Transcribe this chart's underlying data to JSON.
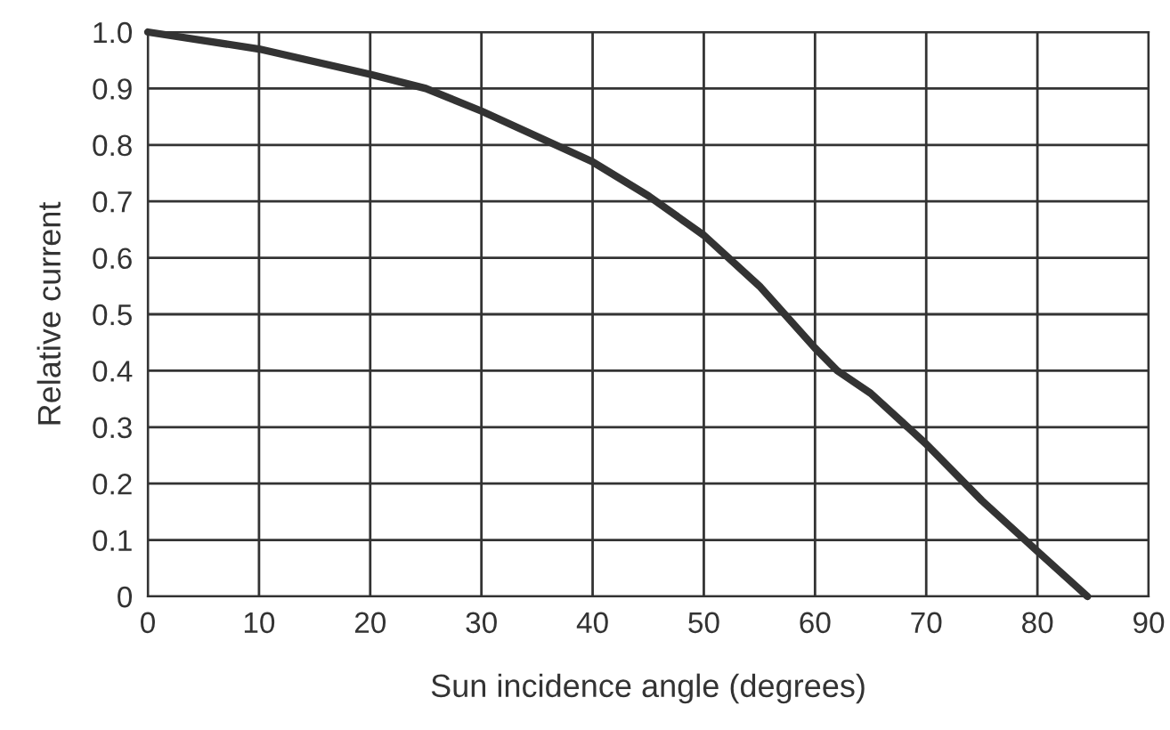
{
  "chart_data": {
    "type": "line",
    "xlabel": "Sun incidence angle (degrees)",
    "ylabel": "Relative current",
    "x": [
      0,
      10,
      20,
      25,
      30,
      40,
      45,
      50,
      55,
      60,
      62,
      65,
      70,
      75,
      80,
      84.5
    ],
    "series": [
      {
        "color": "#333333",
        "values": [
          1.0,
          0.97,
          0.925,
          0.9,
          0.86,
          0.77,
          0.71,
          0.64,
          0.55,
          0.44,
          0.4,
          0.36,
          0.27,
          0.17,
          0.08,
          0
        ]
      }
    ],
    "xlim": [
      0,
      90
    ],
    "xticks": [
      0,
      10,
      20,
      30,
      40,
      50,
      60,
      70,
      80,
      90
    ],
    "ylim": [
      0,
      1.0
    ],
    "yticks": [
      0,
      0.1,
      0.2,
      0.3,
      0.4,
      0.5,
      0.6,
      0.7,
      0.8,
      0.9,
      {
        "value": 1.0,
        "label": "1.0"
      }
    ],
    "grid": true,
    "line_style": "solid",
    "marker": "none"
  }
}
